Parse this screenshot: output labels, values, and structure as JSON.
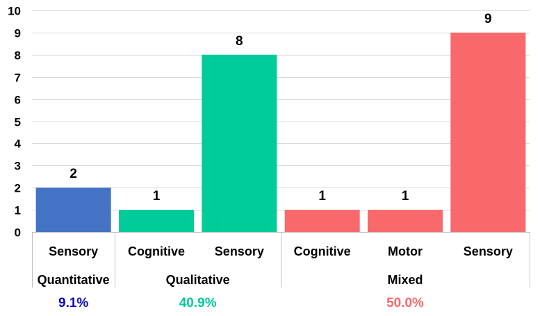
{
  "chart_data": {
    "type": "bar",
    "ylim": [
      0,
      10
    ],
    "yticks": [
      0,
      1,
      2,
      3,
      4,
      5,
      6,
      7,
      8,
      9,
      10
    ],
    "grid": true,
    "categories": [
      "Sensory",
      "Cognitive",
      "Sensory",
      "Cognitive",
      "Motor",
      "Sensory"
    ],
    "values": [
      2,
      1,
      8,
      1,
      1,
      9
    ],
    "data_labels": [
      "2",
      "1",
      "8",
      "1",
      "1",
      "9"
    ],
    "bar_groups": [
      "Quantitative",
      "Qualitative",
      "Qualitative",
      "Mixed",
      "Mixed",
      "Mixed"
    ],
    "groups": [
      {
        "name": "Quantitative",
        "count": 1,
        "percent_label": "9.1%",
        "bar_color": "#4472C4",
        "percent_color": "#0A0AB4"
      },
      {
        "name": "Qualitative",
        "count": 2,
        "percent_label": "40.9%",
        "bar_color": "#00CC99",
        "percent_color": "#00CC99"
      },
      {
        "name": "Mixed",
        "count": 3,
        "percent_label": "50.0%",
        "bar_color": "#F8696B",
        "percent_color": "#F8696B"
      }
    ]
  }
}
